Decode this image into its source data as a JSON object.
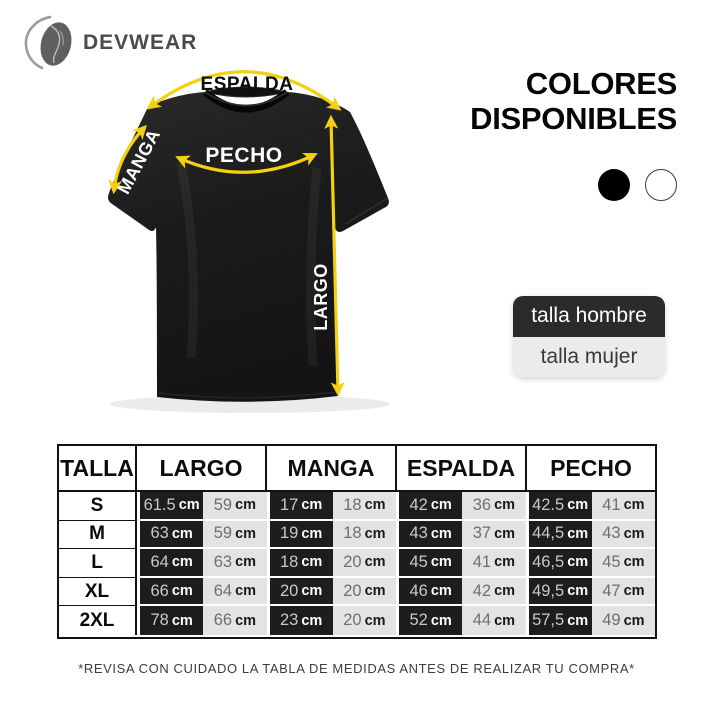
{
  "brand": {
    "name": "DEVWEAR"
  },
  "colors": {
    "title_line1": "COLORES",
    "title_line2": "DISPONIBLES",
    "swatches": [
      {
        "name": "negro",
        "hex": "#000000"
      },
      {
        "name": "blanco",
        "hex": "#ffffff"
      }
    ]
  },
  "size_buttons": {
    "hombre": "talla hombre",
    "mujer": "talla mujer"
  },
  "diagram": {
    "labels": {
      "espalda": "ESPALDA",
      "pecho": "PECHO",
      "manga": "MANGA",
      "largo": "LARGO"
    },
    "arrow_color": "#f2d110",
    "shirt_color": "#1b1b1b"
  },
  "table": {
    "headers": [
      "TALLA",
      "LARGO",
      "MANGA",
      "ESPALDA",
      "PECHO"
    ],
    "unit": "cm",
    "column_styles": {
      "hombre_bg": "#1d1d1d",
      "mujer_bg": "#e3e3e3"
    },
    "rows": [
      {
        "size": "S",
        "values": [
          [
            "61.5",
            "59"
          ],
          [
            "17",
            "18"
          ],
          [
            "42",
            "36"
          ],
          [
            "42.5",
            "41"
          ]
        ]
      },
      {
        "size": "M",
        "values": [
          [
            "63",
            "59"
          ],
          [
            "19",
            "18"
          ],
          [
            "43",
            "37"
          ],
          [
            "44,5",
            "43"
          ]
        ]
      },
      {
        "size": "L",
        "values": [
          [
            "64",
            "63"
          ],
          [
            "18",
            "20"
          ],
          [
            "45",
            "41"
          ],
          [
            "46,5",
            "45"
          ]
        ]
      },
      {
        "size": "XL",
        "values": [
          [
            "66",
            "64"
          ],
          [
            "20",
            "20"
          ],
          [
            "46",
            "42"
          ],
          [
            "49,5",
            "47"
          ]
        ]
      },
      {
        "size": "2XL",
        "values": [
          [
            "78",
            "66"
          ],
          [
            "23",
            "20"
          ],
          [
            "52",
            "44"
          ],
          [
            "57,5",
            "49"
          ]
        ]
      }
    ]
  },
  "footer": {
    "disclaimer": "*REVISA CON CUIDADO LA TABLA DE MEDIDAS ANTES DE REALIZAR TU COMPRA*"
  }
}
